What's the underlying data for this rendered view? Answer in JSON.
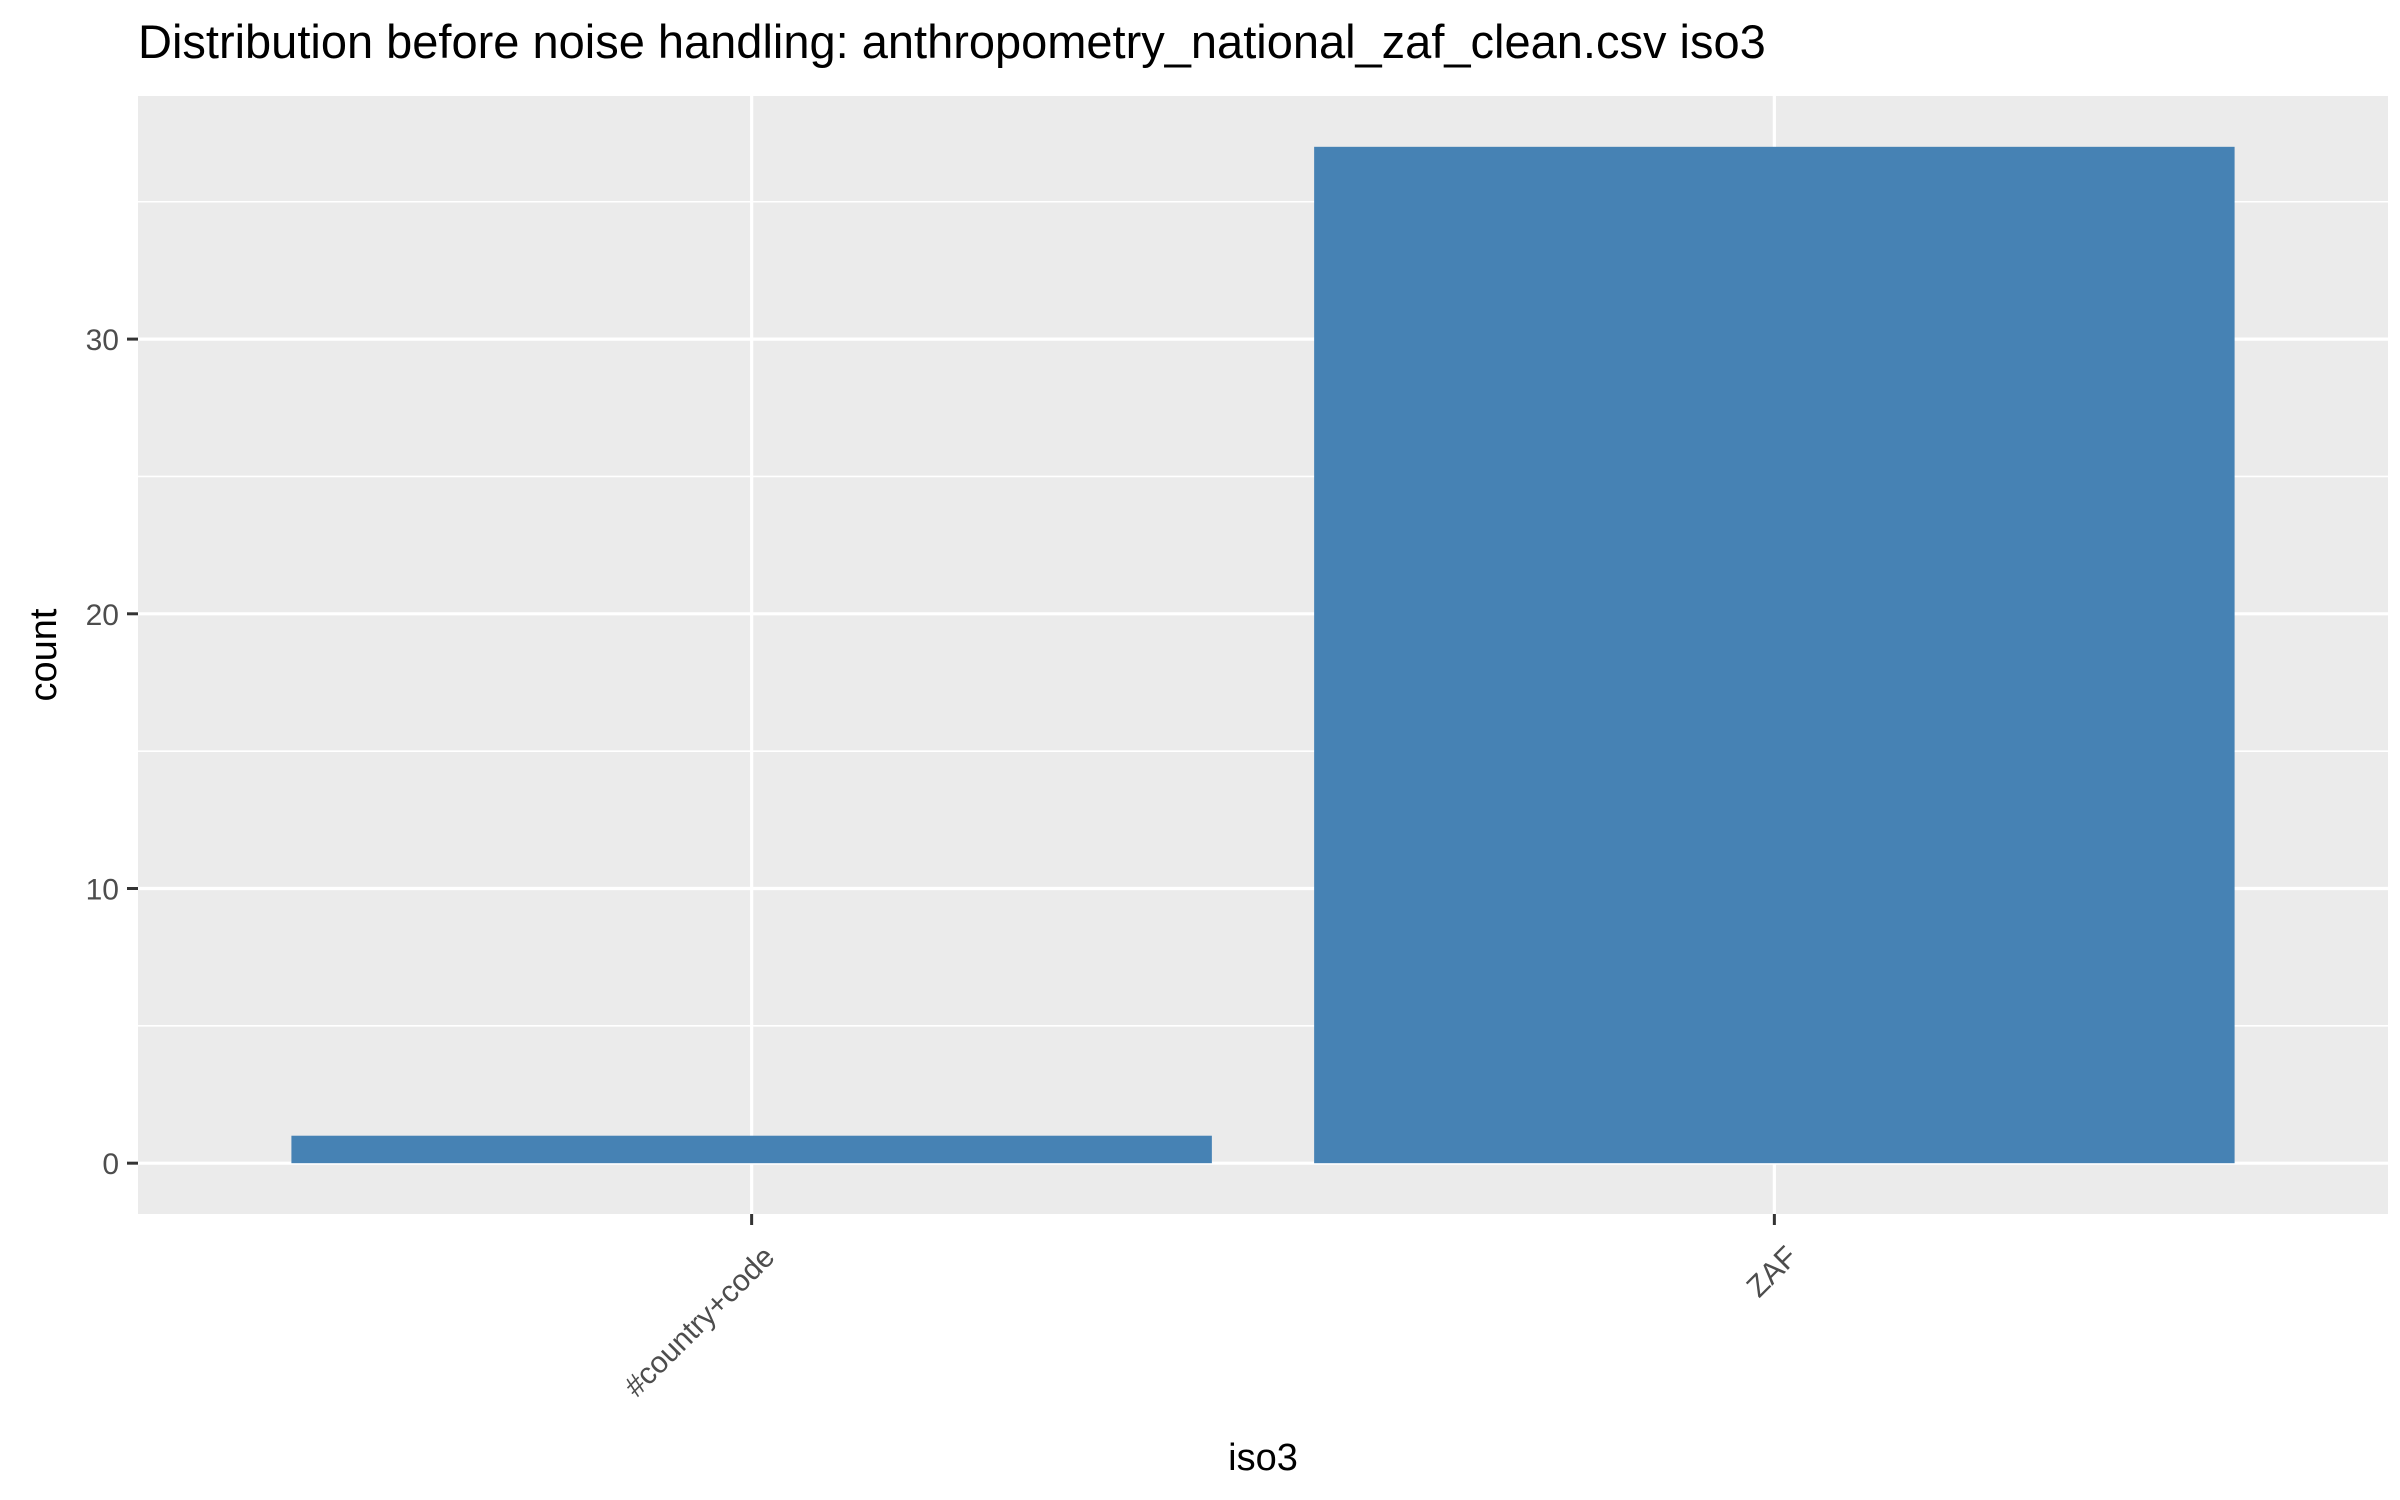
{
  "chart_data": {
    "type": "bar",
    "title": "Distribution before noise handling: anthropometry_national_zaf_clean.csv iso3",
    "xlabel": "iso3",
    "ylabel": "count",
    "categories": [
      "#country+code",
      "ZAF"
    ],
    "values": [
      1,
      37
    ],
    "ylim": [
      -1.85,
      38.85
    ],
    "yticks": [
      0,
      10,
      20,
      30
    ],
    "grid": true,
    "legend": "none",
    "colors": {
      "bar": "#4682B4",
      "panel": "#EBEBEB",
      "grid": "#FFFFFF",
      "axis_text": "#4D4D4D",
      "title_text": "#000000"
    }
  }
}
